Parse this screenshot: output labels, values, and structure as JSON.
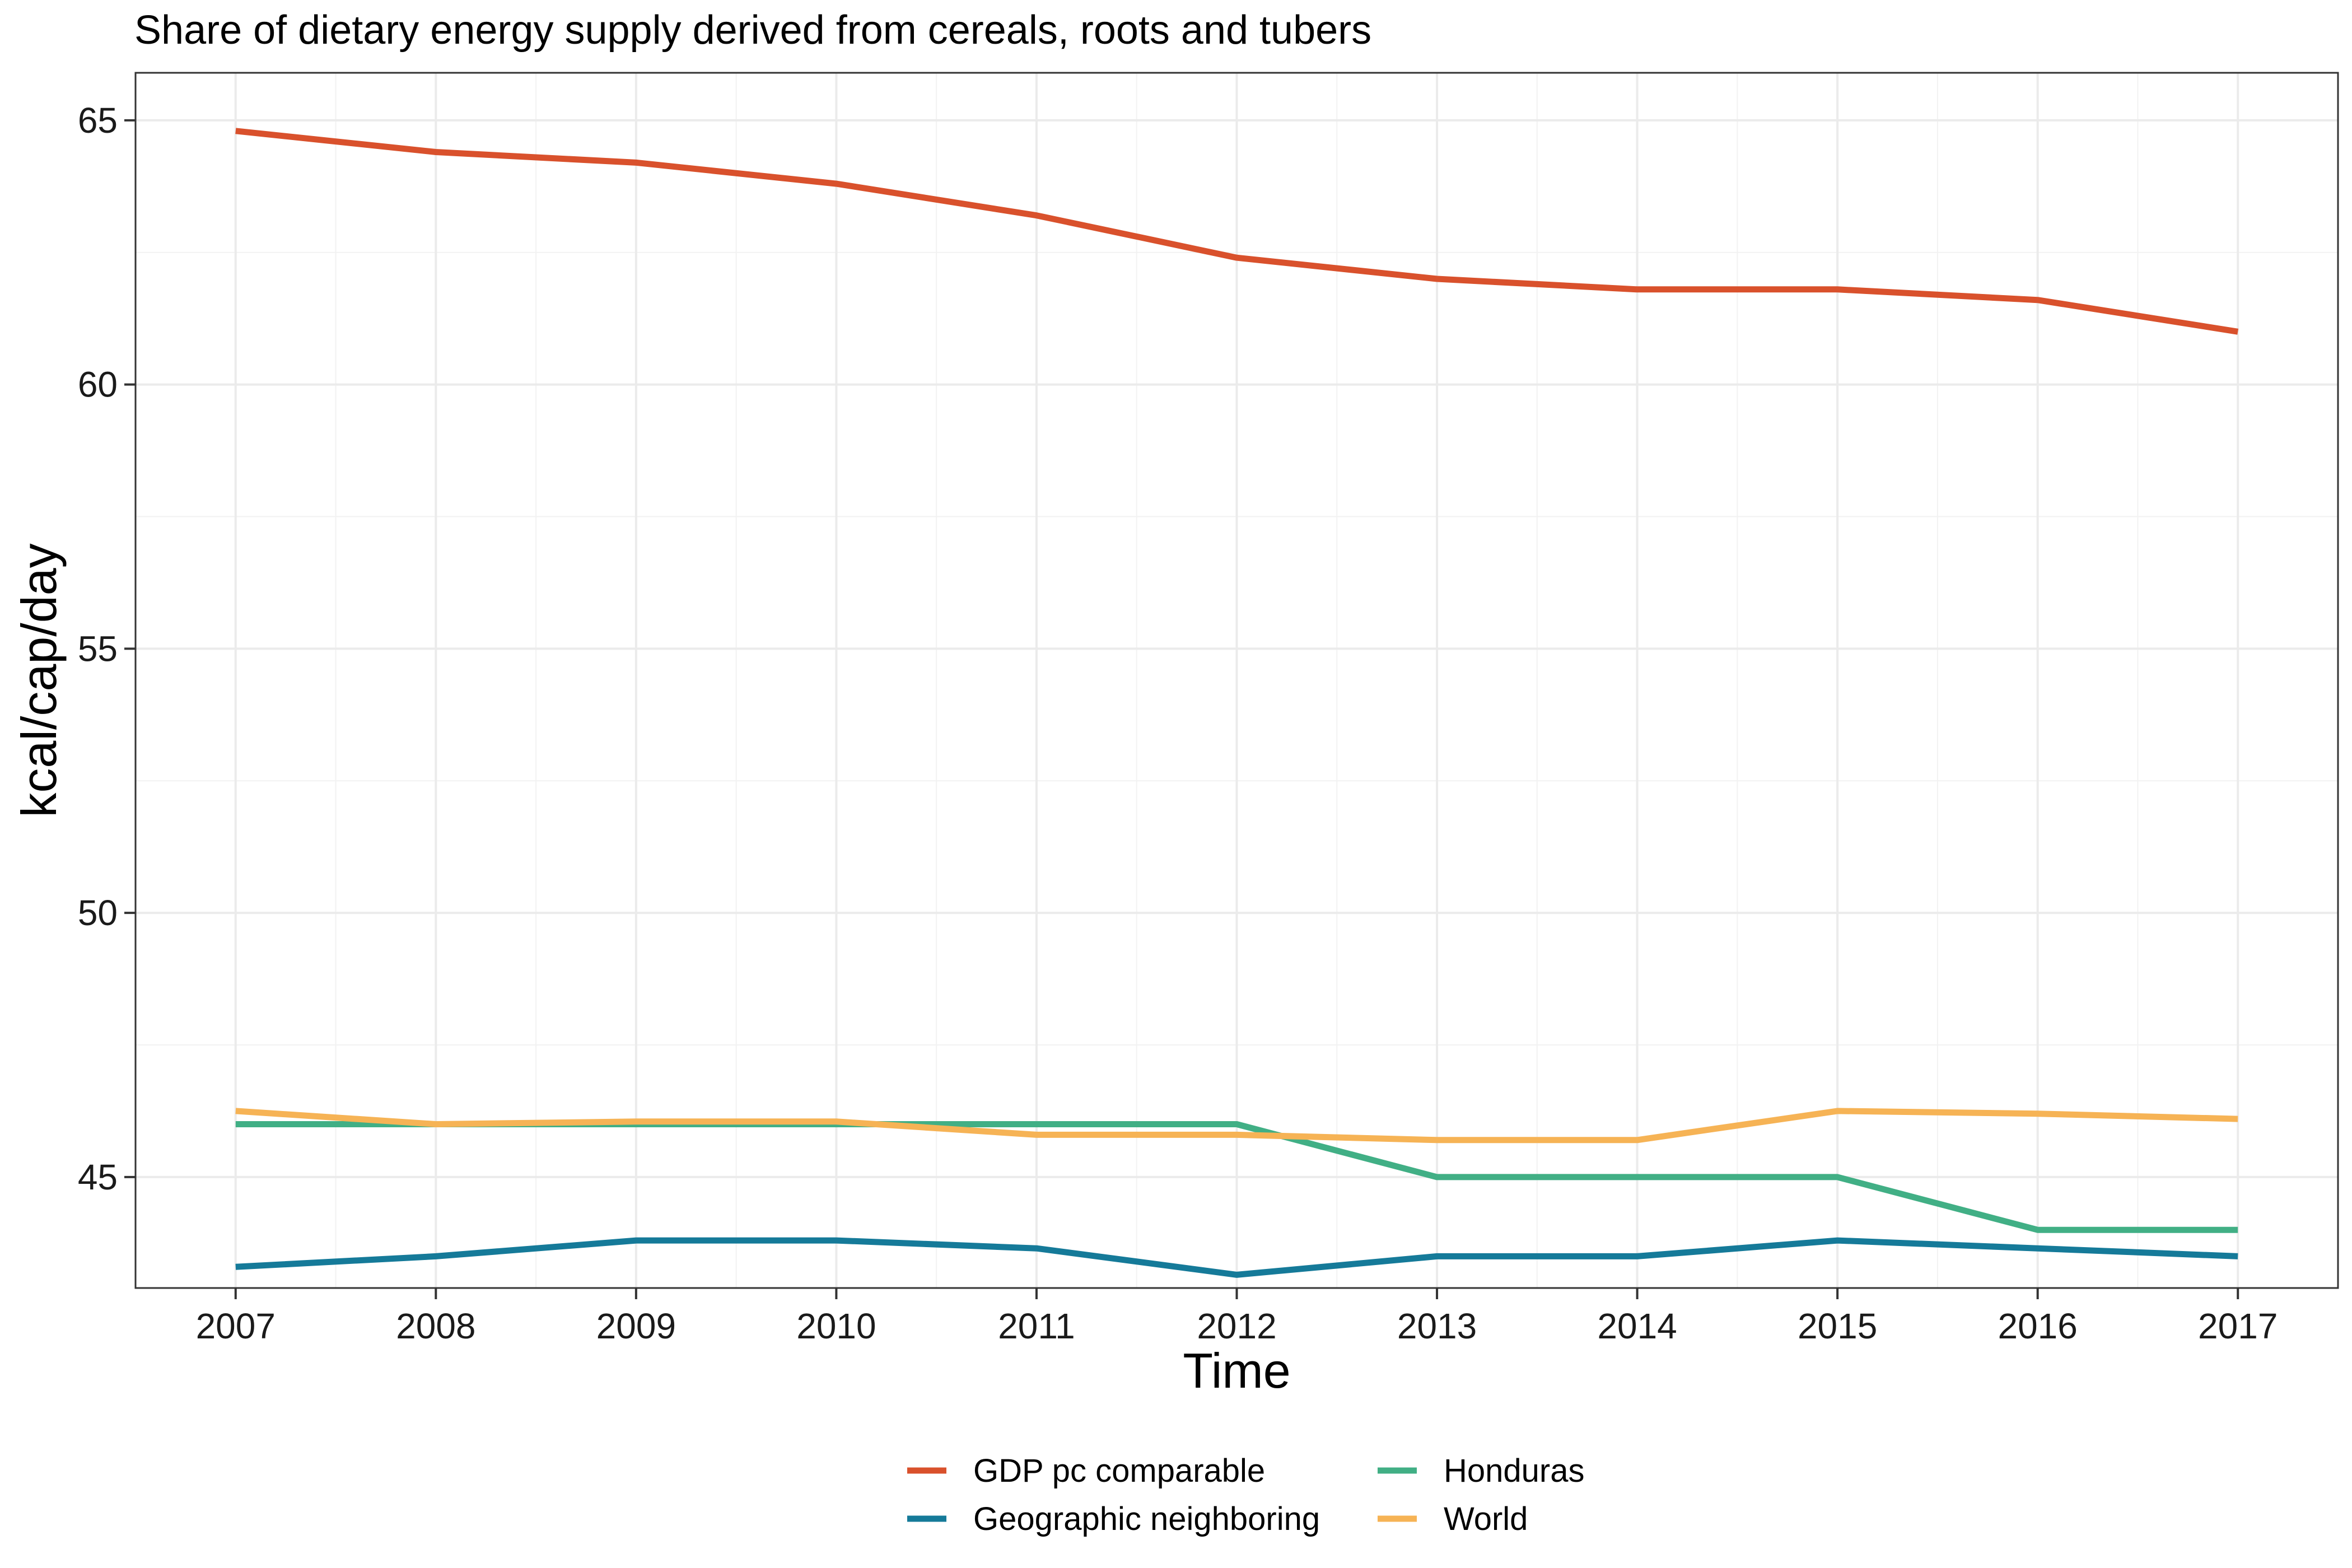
{
  "chart_data": {
    "type": "line",
    "title": "Share of dietary energy supply derived from cereals, roots and tubers",
    "xlabel": "Time",
    "ylabel": "kcal/cap/day",
    "x": [
      2007,
      2008,
      2009,
      2010,
      2011,
      2012,
      2013,
      2014,
      2015,
      2016,
      2017
    ],
    "x_ticks": [
      "2007",
      "2008",
      "2009",
      "2010",
      "2011",
      "2012",
      "2013",
      "2014",
      "2015",
      "2016",
      "2017"
    ],
    "y_ticks": [
      "45",
      "50",
      "55",
      "60",
      "65"
    ],
    "xlim": [
      2006.5,
      2017.5
    ],
    "ylim": [
      42.9,
      65.9
    ],
    "grid": true,
    "legend_position": "bottom",
    "series": [
      {
        "name": "GDP pc comparable",
        "color": "#D9512C",
        "values": [
          64.8,
          64.4,
          64.2,
          63.8,
          63.2,
          62.4,
          62.0,
          61.8,
          61.8,
          61.6,
          61.0
        ]
      },
      {
        "name": "Geographic neighboring",
        "color": "#157A99",
        "values": [
          43.3,
          43.5,
          43.8,
          43.8,
          43.65,
          43.15,
          43.5,
          43.5,
          43.8,
          43.65,
          43.5
        ]
      },
      {
        "name": "Honduras",
        "color": "#41AF85",
        "values": [
          46.0,
          46.0,
          46.0,
          46.0,
          46.0,
          46.0,
          45.0,
          45.0,
          45.0,
          44.0,
          44.0
        ]
      },
      {
        "name": "World",
        "color": "#F6B355",
        "values": [
          46.25,
          46.0,
          46.05,
          46.05,
          45.8,
          45.8,
          45.7,
          45.7,
          46.25,
          46.2,
          46.1
        ]
      }
    ]
  }
}
